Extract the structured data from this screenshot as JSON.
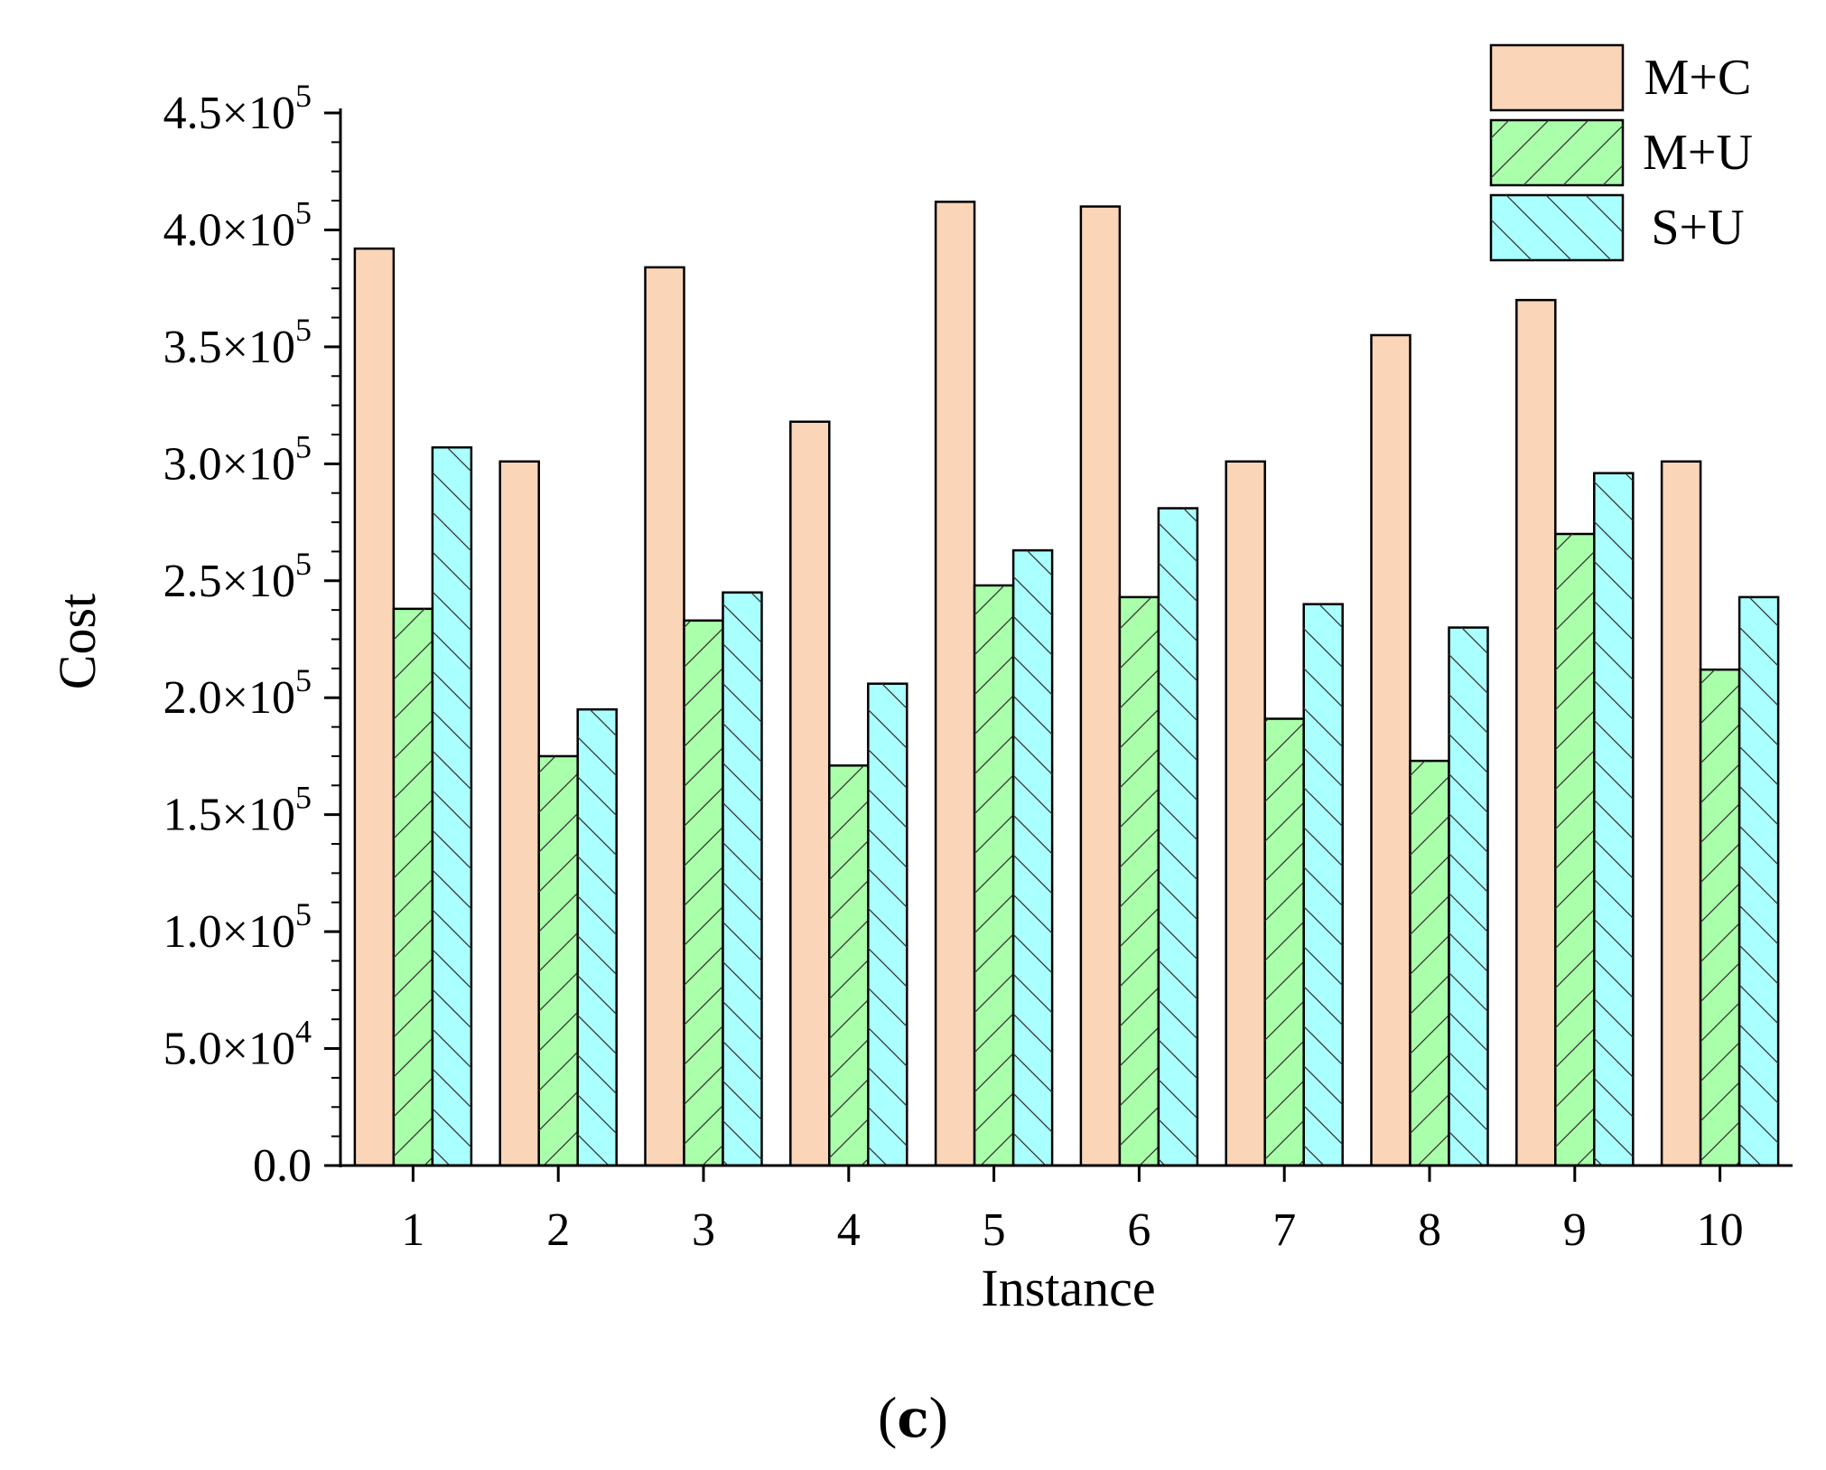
{
  "chart_data": {
    "type": "bar",
    "title": "",
    "xlabel": "Instance",
    "ylabel": "Cost",
    "categories": [
      "1",
      "2",
      "3",
      "4",
      "5",
      "6",
      "7",
      "8",
      "9",
      "10"
    ],
    "series": [
      {
        "name": "M+C",
        "color": "#fad5b8",
        "hatch": "none",
        "values": [
          392000,
          301000,
          384000,
          318000,
          412000,
          410000,
          301000,
          355000,
          370000,
          301000
        ]
      },
      {
        "name": "M+U",
        "color": "#aaffaa",
        "hatch": "forward-diagonal",
        "values": [
          238000,
          175000,
          233000,
          171000,
          248000,
          243000,
          191000,
          173000,
          270000,
          212000
        ]
      },
      {
        "name": "S+U",
        "color": "#aaffff",
        "hatch": "back-diagonal",
        "values": [
          307000,
          195000,
          245000,
          206000,
          263000,
          281000,
          240000,
          230000,
          296000,
          243000
        ]
      }
    ],
    "ylim": [
      0,
      450000
    ],
    "yticks": [
      {
        "value": 0,
        "mantissa": "0.0",
        "exp": ""
      },
      {
        "value": 50000,
        "mantissa": "5.0×10",
        "exp": "4"
      },
      {
        "value": 100000,
        "mantissa": "1.0×10",
        "exp": "5"
      },
      {
        "value": 150000,
        "mantissa": "1.5×10",
        "exp": "5"
      },
      {
        "value": 200000,
        "mantissa": "2.0×10",
        "exp": "5"
      },
      {
        "value": 250000,
        "mantissa": "2.5×10",
        "exp": "5"
      },
      {
        "value": 300000,
        "mantissa": "3.0×10",
        "exp": "5"
      },
      {
        "value": 350000,
        "mantissa": "3.5×10",
        "exp": "5"
      },
      {
        "value": 400000,
        "mantissa": "4.0×10",
        "exp": "5"
      },
      {
        "value": 450000,
        "mantissa": "4.5×10",
        "exp": "5"
      }
    ],
    "y_minor_step": 12500,
    "grid": false,
    "legend_position": "top-right",
    "caption_prefix": "(",
    "caption_letter": "c",
    "caption_suffix": ")"
  }
}
